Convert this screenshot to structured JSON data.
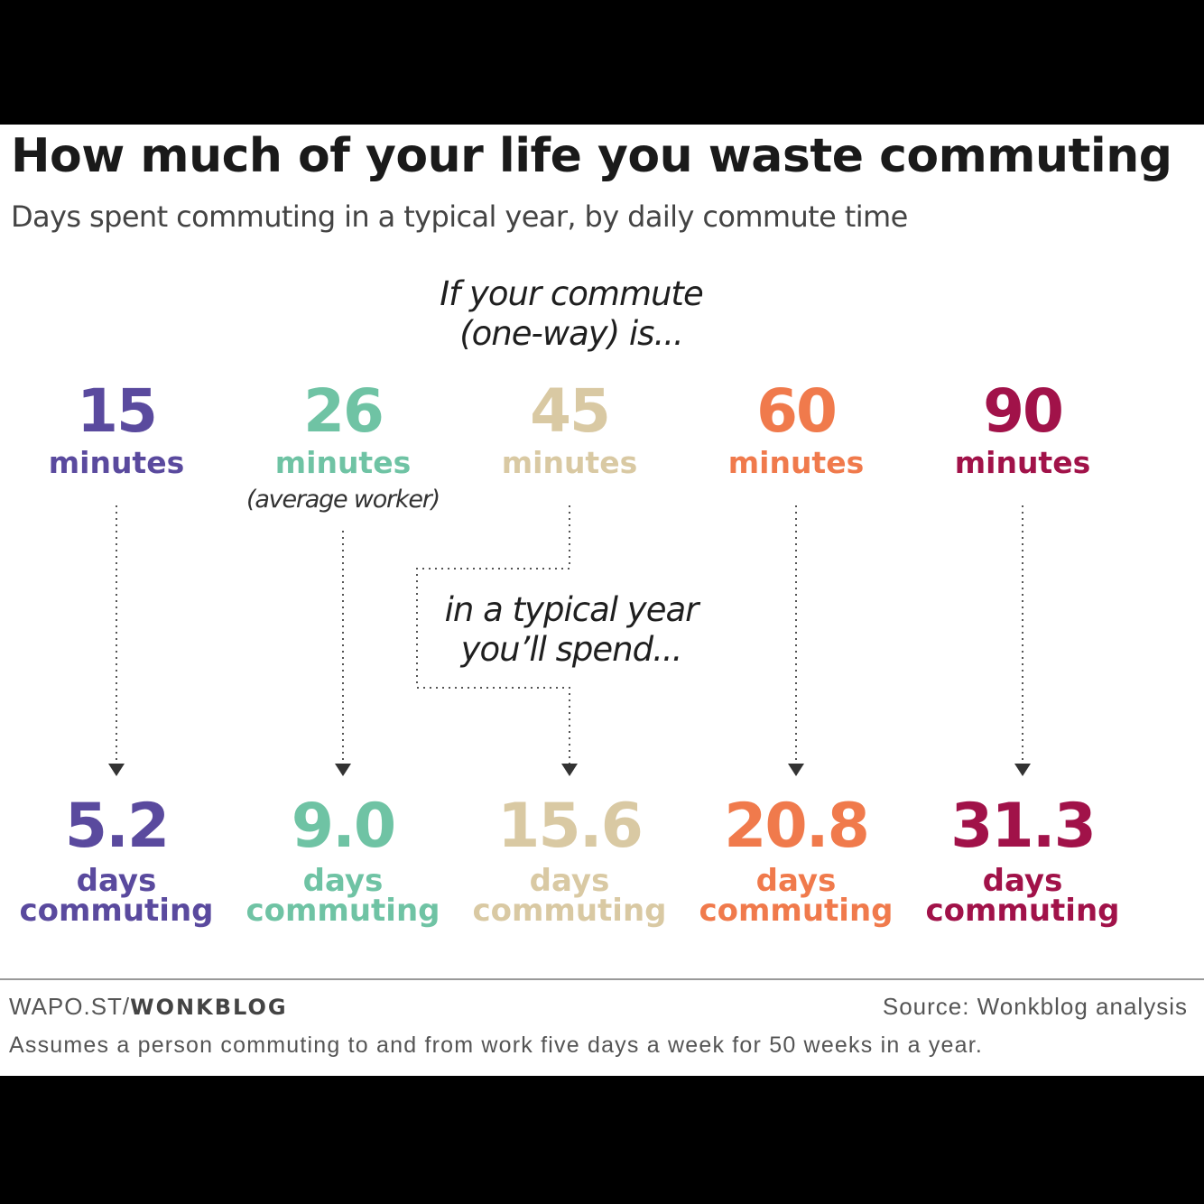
{
  "title": "How much of your life you waste commuting",
  "subtitle": "Days spent commuting in a typical year, by daily commute time",
  "intro_top": [
    "If your commute",
    "(one-way) is..."
  ],
  "intro_mid": [
    "in a typical year",
    "you’ll spend..."
  ],
  "chart_data": {
    "type": "table",
    "title": "How much of your life you waste commuting",
    "subtitle": "Days spent commuting in a typical year, by daily commute time",
    "minutes_unit": "minutes",
    "days_unit": "days",
    "days_suffix": "commuting",
    "rows": [
      {
        "minutes": "15",
        "days": "5.2",
        "color": "#5a4a9e",
        "note": ""
      },
      {
        "minutes": "26",
        "days": "9.0",
        "color": "#6fc3a4",
        "note": "(average worker)"
      },
      {
        "minutes": "45",
        "days": "15.6",
        "color": "#d9c9a3",
        "note": ""
      },
      {
        "minutes": "60",
        "days": "20.8",
        "color": "#f07a4c",
        "note": ""
      },
      {
        "minutes": "90",
        "days": "31.3",
        "color": "#a11249",
        "note": ""
      }
    ]
  },
  "footer": {
    "brand_prefix": "WAPO.ST/",
    "brand_name": "WONKBLOG",
    "source": "Source: Wonkblog analysis",
    "note": "Assumes a person commuting to and from work five days a week for 50 weeks in a year."
  }
}
